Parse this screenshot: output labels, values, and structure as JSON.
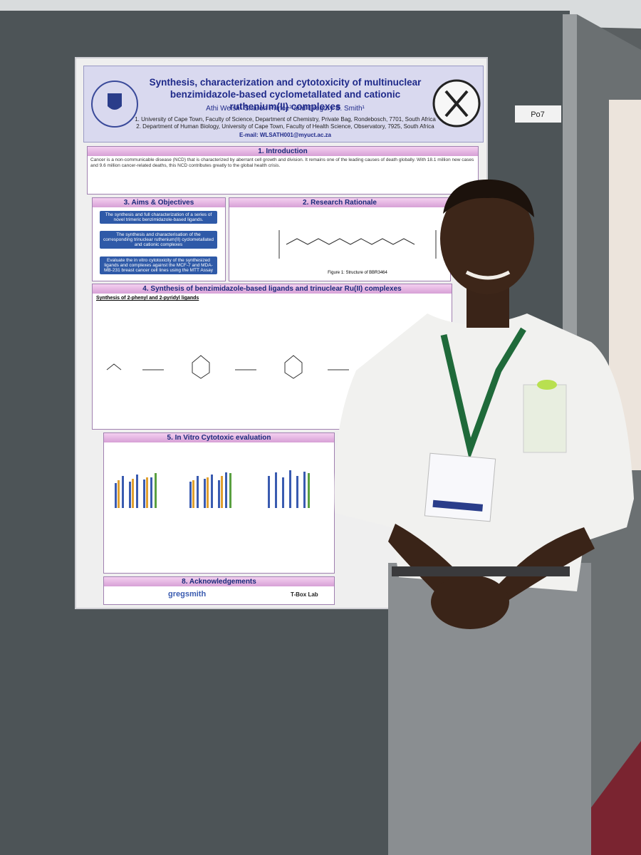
{
  "board_label": "Po7",
  "poster": {
    "title": "Synthesis, characterization and cytotoxicity of multinuclear benzimidazole-based cyclometallated and cationic ruthenium(II) complexes",
    "authors": "Athi Welsh¹ Sharon Prince² and Gregory S. Smith¹",
    "affiliations": [
      "1. University of Cape Town, Faculty of Science, Department of Chemistry, Private Bag, Rondebosch, 7701, South Africa",
      "2. Department of Human Biology, University of Cape Town, Faculty of Health Science, Observatory, 7925, South Africa"
    ],
    "email": "E-mail: WLSATH001@myuct.ac.za",
    "introduction": {
      "heading": "1. Introduction",
      "text": "Cancer is a non-communicable disease (NCD) that is characterized by aberrant cell growth and division. It remains one of the leading causes of death globally. With 18.1 million new cases and 9.6 million cancer-related deaths, this NCD contributes greatly to the global health crisis."
    },
    "aims": {
      "heading": "3. Aims & Objectives",
      "items": [
        "The synthesis and full characterization of a series of novel trimeric benzimidazole-based ligands.",
        "The synthesis and characterisation of the corresponding trinuclear ruthenium(II) cyclometallated and cationic complexes",
        "Evaluate the in vitro cytotoxicity of the synthesized ligands and complexes against the MCF-7 and MDA-MB-231 breast cancer cell lines using the MTT Assay"
      ]
    },
    "rationale": {
      "heading": "2. Research Rationale",
      "caption": "Figure 1: Structure of BBR3464"
    },
    "synthesis": {
      "heading": "4. Synthesis of benzimidazole-based ligands and trinuclear Ru(II) complexes",
      "subheading": "Synthesis of 2-phenyl and 2-pyridyl ligands"
    },
    "cytotoxic": {
      "heading": "5. In Vitro Cytotoxic evaluation"
    },
    "acknowledgements": {
      "heading": "8. Acknowledgements",
      "logos": [
        "gregsmith",
        "T-Box Lab"
      ]
    }
  }
}
